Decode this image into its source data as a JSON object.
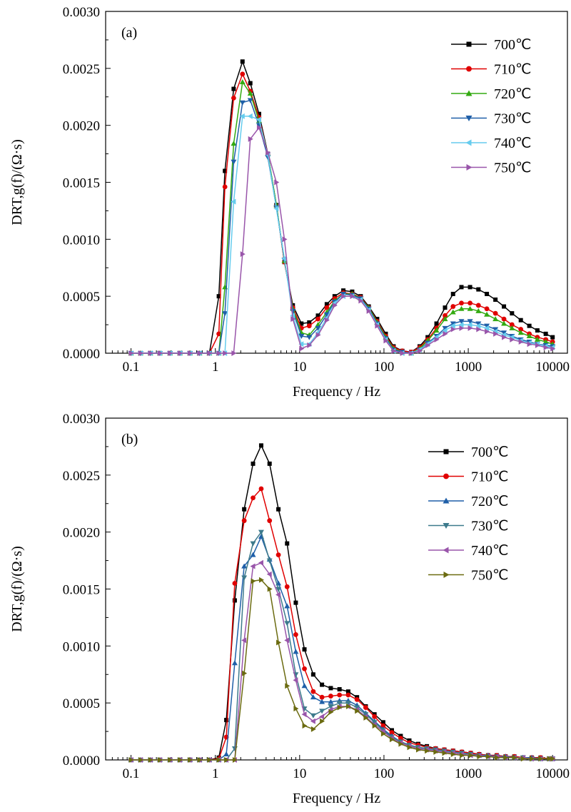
{
  "figure": {
    "panels": [
      "(a)",
      "(b)"
    ]
  },
  "chart_data": [
    {
      "type": "line",
      "panel_label": "(a)",
      "xlabel": "Frequency / Hz",
      "ylabel": "DRT,g(f)/(Ω·s)",
      "xscale": "log",
      "xlim": [
        0.05,
        15000
      ],
      "ylim": [
        0,
        0.003
      ],
      "xticks": [
        {
          "v": 0.1,
          "label": "0.1"
        },
        {
          "v": 1,
          "label": "1"
        },
        {
          "v": 10,
          "label": "10"
        },
        {
          "v": 100,
          "label": "100"
        },
        {
          "v": 1000,
          "label": "1000"
        },
        {
          "v": 10000,
          "label": "10000"
        }
      ],
      "yticks": [
        {
          "v": 0,
          "label": "0.0000"
        },
        {
          "v": 0.0005,
          "label": "0.0005"
        },
        {
          "v": 0.001,
          "label": "0.0010"
        },
        {
          "v": 0.0015,
          "label": "0.0015"
        },
        {
          "v": 0.002,
          "label": "0.0020"
        },
        {
          "v": 0.0025,
          "label": "0.0025"
        },
        {
          "v": 0.003,
          "label": "0.0030"
        }
      ],
      "legend_position": "top-right",
      "x": [
        0.1,
        0.13,
        0.17,
        0.22,
        0.29,
        0.38,
        0.5,
        0.65,
        0.85,
        1.1,
        1.3,
        1.65,
        2.1,
        2.6,
        3.3,
        4.2,
        5.3,
        6.6,
        8.3,
        10.5,
        13,
        16.5,
        21,
        26,
        33,
        42,
        53,
        66,
        83,
        105,
        130,
        165,
        210,
        265,
        330,
        420,
        530,
        660,
        830,
        1050,
        1320,
        1660,
        2100,
        2650,
        3300,
        4200,
        5300,
        6600,
        8300,
        10000
      ],
      "series": [
        {
          "name": "700℃",
          "color": "#000000",
          "marker": "square",
          "values": [
            0,
            0,
            0,
            0,
            0,
            0,
            0,
            0,
            0,
            0.0005,
            0.0016,
            0.00232,
            0.00256,
            0.00237,
            0.0021,
            0.00175,
            0.0013,
            0.0008,
            0.00042,
            0.00026,
            0.00027,
            0.00033,
            0.00043,
            0.0005,
            0.00055,
            0.00054,
            0.0005,
            0.00041,
            0.0003,
            0.00017,
            6e-05,
            2e-05,
            1e-05,
            6e-05,
            0.00014,
            0.00026,
            0.0004,
            0.00052,
            0.00058,
            0.00058,
            0.00056,
            0.00052,
            0.00047,
            0.00041,
            0.00035,
            0.00029,
            0.00024,
            0.0002,
            0.00017,
            0.00014
          ]
        },
        {
          "name": "710℃",
          "color": "#e00000",
          "marker": "circle",
          "values": [
            0,
            0,
            0,
            0,
            0,
            0,
            0,
            0,
            0,
            0.00017,
            0.00146,
            0.00224,
            0.00245,
            0.0023,
            0.00207,
            0.00174,
            0.00129,
            0.0008,
            0.0004,
            0.00022,
            0.00024,
            0.0003,
            0.0004,
            0.00048,
            0.00053,
            0.00052,
            0.00049,
            0.0004,
            0.00028,
            0.00015,
            5e-05,
            2e-05,
            1e-05,
            5e-05,
            0.00012,
            0.00022,
            0.00033,
            0.00041,
            0.00044,
            0.00044,
            0.00042,
            0.00039,
            0.00035,
            0.0003,
            0.00025,
            0.00021,
            0.00017,
            0.00014,
            0.00012,
            0.0001
          ]
        },
        {
          "name": "720℃",
          "color": "#33aa11",
          "marker": "triangle-up",
          "values": [
            0,
            0,
            0,
            0,
            0,
            0,
            0,
            0,
            0,
            0,
            0.00058,
            0.00184,
            0.00238,
            0.00228,
            0.00204,
            0.00175,
            0.0013,
            0.00081,
            0.00039,
            0.00018,
            0.00016,
            0.00025,
            0.00036,
            0.00046,
            0.00052,
            0.00052,
            0.00048,
            0.0004,
            0.00027,
            0.00014,
            4e-05,
            1e-05,
            0,
            4e-05,
            0.00011,
            0.0002,
            0.0003,
            0.00036,
            0.00039,
            0.00039,
            0.00037,
            0.00034,
            0.0003,
            0.00026,
            0.00022,
            0.00018,
            0.00015,
            0.00012,
            0.0001,
            8e-05
          ]
        },
        {
          "name": "730℃",
          "color": "#1f5fa8",
          "marker": "triangle-down",
          "values": [
            0,
            0,
            0,
            0,
            0,
            0,
            0,
            0,
            0,
            0,
            0.00035,
            0.00168,
            0.0022,
            0.00222,
            0.002,
            0.00172,
            0.00128,
            0.00082,
            0.00037,
            0.00015,
            0.00014,
            0.00022,
            0.00034,
            0.00045,
            0.00052,
            0.00051,
            0.00048,
            0.00039,
            0.00026,
            0.00013,
            3e-05,
            1e-05,
            0,
            3e-05,
            9e-05,
            0.00015,
            0.00022,
            0.00026,
            0.00028,
            0.00028,
            0.00026,
            0.00024,
            0.00021,
            0.00018,
            0.00015,
            0.00012,
            0.0001,
            8e-05,
            7e-05,
            6e-05
          ]
        },
        {
          "name": "740℃",
          "color": "#66ccee",
          "marker": "triangle-left",
          "values": [
            0,
            0,
            0,
            0,
            0,
            0,
            0,
            0,
            0,
            0,
            0,
            0.00133,
            0.00208,
            0.00208,
            0.00205,
            0.00174,
            0.00127,
            0.00083,
            0.00033,
            8e-05,
            8e-05,
            0.00018,
            0.00031,
            0.00044,
            0.0005,
            0.0005,
            0.00047,
            0.00038,
            0.00025,
            0.00012,
            2e-05,
            0,
            0,
            3e-05,
            8e-05,
            0.00014,
            0.0002,
            0.00024,
            0.00025,
            0.00025,
            0.00024,
            0.00022,
            0.00019,
            0.00016,
            0.00014,
            0.00011,
            9e-05,
            8e-05,
            6e-05,
            5e-05
          ]
        },
        {
          "name": "750℃",
          "color": "#9955aa",
          "marker": "triangle-right",
          "values": [
            0,
            0,
            0,
            0,
            0,
            0,
            0,
            0,
            0,
            0,
            0,
            0,
            0.00087,
            0.00188,
            0.00198,
            0.00176,
            0.0015,
            0.001,
            0.0003,
            4e-05,
            7e-05,
            0.00016,
            0.00029,
            0.00042,
            0.0005,
            0.0005,
            0.00046,
            0.00037,
            0.00024,
            0.00011,
            2e-05,
            0,
            0,
            2e-05,
            7e-05,
            0.00012,
            0.00017,
            0.00021,
            0.00022,
            0.00022,
            0.00021,
            0.00019,
            0.00017,
            0.00014,
            0.00012,
            0.0001,
            8e-05,
            7e-05,
            5e-05,
            4e-05
          ]
        }
      ]
    },
    {
      "type": "line",
      "panel_label": "(b)",
      "xlabel": "Frequency / Hz",
      "ylabel": "DRT,g(f)/(Ω·s)",
      "xscale": "log",
      "xlim": [
        0.05,
        15000
      ],
      "ylim": [
        0,
        0.003
      ],
      "xticks": [
        {
          "v": 0.1,
          "label": "0.1"
        },
        {
          "v": 1,
          "label": "1"
        },
        {
          "v": 10,
          "label": "10"
        },
        {
          "v": 100,
          "label": "100"
        },
        {
          "v": 1000,
          "label": "1000"
        },
        {
          "v": 10000,
          "label": "10000"
        }
      ],
      "yticks": [
        {
          "v": 0,
          "label": "0.0000"
        },
        {
          "v": 0.0005,
          "label": "0.0005"
        },
        {
          "v": 0.001,
          "label": "0.0010"
        },
        {
          "v": 0.0015,
          "label": "0.0015"
        },
        {
          "v": 0.002,
          "label": "0.0020"
        },
        {
          "v": 0.0025,
          "label": "0.0025"
        },
        {
          "v": 0.003,
          "label": "0.0030"
        }
      ],
      "legend_position": "top-right",
      "x": [
        0.1,
        0.13,
        0.17,
        0.22,
        0.29,
        0.38,
        0.5,
        0.65,
        0.85,
        1.1,
        1.35,
        1.7,
        2.2,
        2.8,
        3.5,
        4.4,
        5.6,
        7.1,
        9,
        11.4,
        14.5,
        18.4,
        23.4,
        29.7,
        37.7,
        47.9,
        60.8,
        77.2,
        98,
        124,
        158,
        200,
        255,
        323,
        410,
        520,
        660,
        840,
        1070,
        1350,
        1720,
        2180,
        2770,
        3520,
        4460,
        5670,
        7200,
        9140,
        10000
      ],
      "series": [
        {
          "name": "700℃",
          "color": "#000000",
          "marker": "square",
          "values": [
            0,
            0,
            0,
            0,
            0,
            0,
            0,
            0,
            0,
            2e-05,
            0.00035,
            0.0014,
            0.0022,
            0.0026,
            0.00276,
            0.0026,
            0.0022,
            0.0019,
            0.00138,
            0.00097,
            0.00075,
            0.00066,
            0.00063,
            0.00062,
            0.0006,
            0.00055,
            0.00047,
            0.0004,
            0.00033,
            0.00026,
            0.00021,
            0.00017,
            0.00014,
            0.00012,
            0.0001,
            9e-05,
            8e-05,
            7e-05,
            6e-05,
            5e-05,
            4e-05,
            4e-05,
            3e-05,
            3e-05,
            2e-05,
            2e-05,
            2e-05,
            1e-05,
            1e-05
          ]
        },
        {
          "name": "710℃",
          "color": "#e00000",
          "marker": "circle",
          "values": [
            0,
            0,
            0,
            0,
            0,
            0,
            0,
            0,
            0,
            1e-05,
            0.0002,
            0.00155,
            0.0021,
            0.0023,
            0.00238,
            0.0021,
            0.0018,
            0.00152,
            0.0011,
            0.0008,
            0.0006,
            0.00055,
            0.00056,
            0.00057,
            0.00057,
            0.00053,
            0.00046,
            0.00038,
            0.0003,
            0.00024,
            0.00019,
            0.00015,
            0.00013,
            0.00011,
            0.0001,
            9e-05,
            8e-05,
            7e-05,
            6e-05,
            5e-05,
            4e-05,
            4e-05,
            3e-05,
            3e-05,
            2e-05,
            2e-05,
            2e-05,
            1e-05,
            1e-05
          ]
        },
        {
          "name": "720℃",
          "color": "#1f5fa8",
          "marker": "triangle-up",
          "values": [
            0,
            0,
            0,
            0,
            0,
            0,
            0,
            0,
            0,
            0,
            5e-05,
            0.00085,
            0.0017,
            0.0018,
            0.00196,
            0.00176,
            0.00155,
            0.00135,
            0.00095,
            0.00065,
            0.00055,
            0.00051,
            0.00051,
            0.00052,
            0.00052,
            0.00048,
            0.00041,
            0.00034,
            0.00027,
            0.00021,
            0.00016,
            0.00013,
            0.00011,
            0.0001,
            9e-05,
            8e-05,
            7e-05,
            6e-05,
            5e-05,
            4e-05,
            4e-05,
            3e-05,
            3e-05,
            2e-05,
            2e-05,
            2e-05,
            1e-05,
            1e-05,
            1e-05
          ]
        },
        {
          "name": "730℃",
          "color": "#3d7a8c",
          "marker": "triangle-down",
          "values": [
            0,
            0,
            0,
            0,
            0,
            0,
            0,
            0,
            0,
            0,
            0,
            0.0001,
            0.0016,
            0.0019,
            0.002,
            0.00175,
            0.0015,
            0.0012,
            0.00075,
            0.00045,
            0.00039,
            0.00043,
            0.00047,
            0.0005,
            0.0005,
            0.00046,
            0.0004,
            0.00033,
            0.00026,
            0.0002,
            0.00016,
            0.00013,
            0.00011,
            0.0001,
            9e-05,
            8e-05,
            7e-05,
            6e-05,
            5e-05,
            4e-05,
            3e-05,
            3e-05,
            2e-05,
            2e-05,
            2e-05,
            1e-05,
            1e-05,
            1e-05,
            1e-05
          ]
        },
        {
          "name": "740℃",
          "color": "#9955aa",
          "marker": "triangle-left",
          "values": [
            0,
            0,
            0,
            0,
            0,
            0,
            0,
            0,
            0,
            0,
            0,
            0,
            0.00105,
            0.0017,
            0.00173,
            0.00163,
            0.00145,
            0.00105,
            0.0007,
            0.0004,
            0.00034,
            0.00038,
            0.00044,
            0.00047,
            0.00047,
            0.00044,
            0.00038,
            0.00031,
            0.00025,
            0.00019,
            0.00015,
            0.00012,
            0.0001,
            9e-05,
            8e-05,
            7e-05,
            6e-05,
            5e-05,
            4e-05,
            4e-05,
            3e-05,
            3e-05,
            2e-05,
            2e-05,
            2e-05,
            1e-05,
            1e-05,
            1e-05,
            1e-05
          ]
        },
        {
          "name": "750℃",
          "color": "#6b6b10",
          "marker": "triangle-right",
          "values": [
            0,
            0,
            0,
            0,
            0,
            0,
            0,
            0,
            0,
            0,
            0,
            0,
            0.00076,
            0.00157,
            0.00158,
            0.0015,
            0.00103,
            0.00065,
            0.00045,
            0.0003,
            0.00027,
            0.00034,
            0.00042,
            0.00046,
            0.00047,
            0.00043,
            0.00037,
            0.0003,
            0.00023,
            0.00018,
            0.00014,
            0.00011,
            9e-05,
            8e-05,
            7e-05,
            6e-05,
            5e-05,
            4e-05,
            4e-05,
            3e-05,
            3e-05,
            2e-05,
            2e-05,
            2e-05,
            1e-05,
            1e-05,
            1e-05,
            1e-05,
            1e-05
          ]
        }
      ]
    }
  ]
}
